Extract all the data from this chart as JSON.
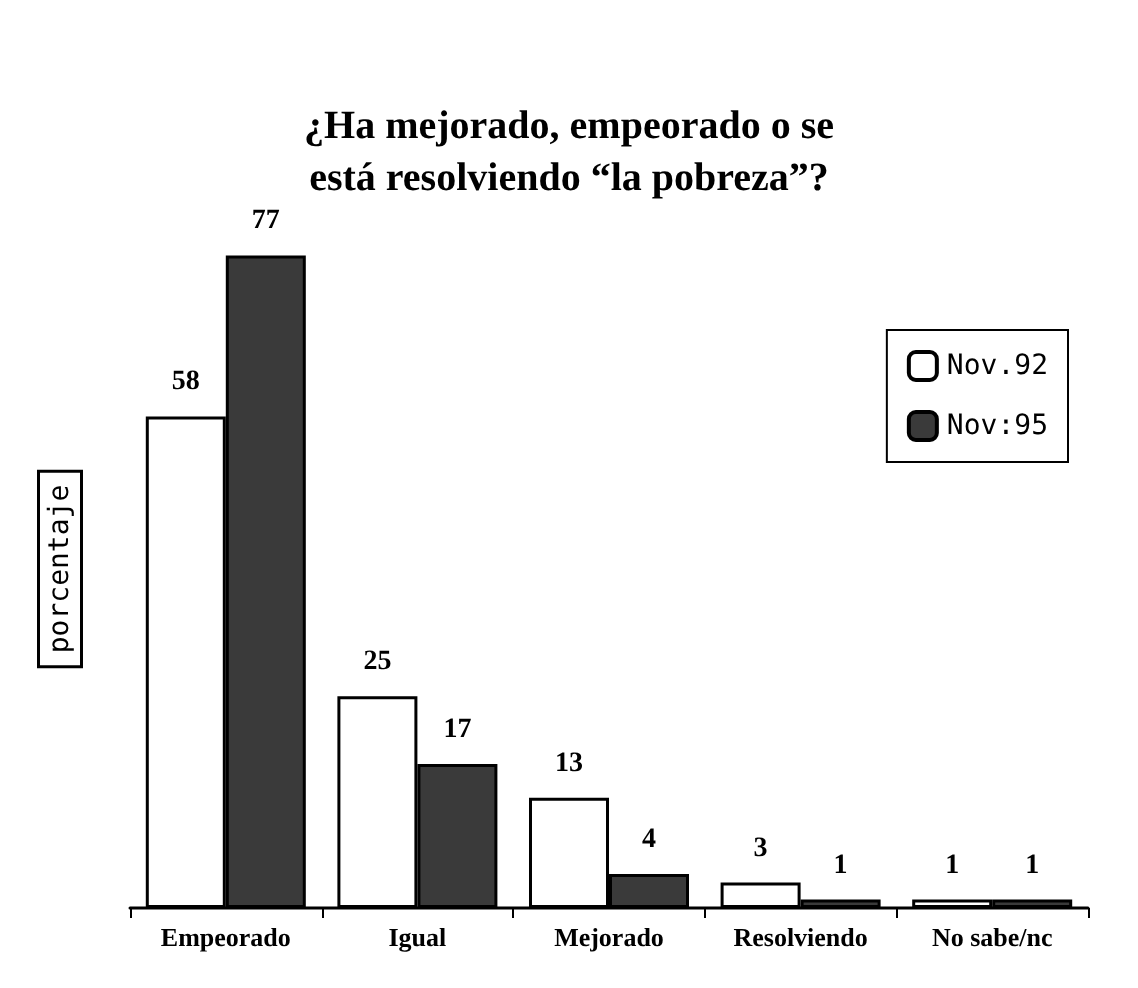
{
  "chart_data": {
    "type": "bar",
    "title": "¿Ha mejorado, empeorado o se\nestá resolviendo “la pobreza”?",
    "ylabel": "porcentaje",
    "categories": [
      "Empeorado",
      "Igual",
      "Mejorado",
      "Resolviendo",
      "No sabe/nc"
    ],
    "series": [
      {
        "name": "Nov.92",
        "color": "#ffffff",
        "values": [
          58,
          25,
          13,
          3,
          1
        ]
      },
      {
        "name": "Nov:95",
        "color": "#3a3a3a",
        "values": [
          77,
          17,
          4,
          1,
          1
        ]
      }
    ],
    "data_labels": true,
    "legend": "top right",
    "grid": false
  }
}
